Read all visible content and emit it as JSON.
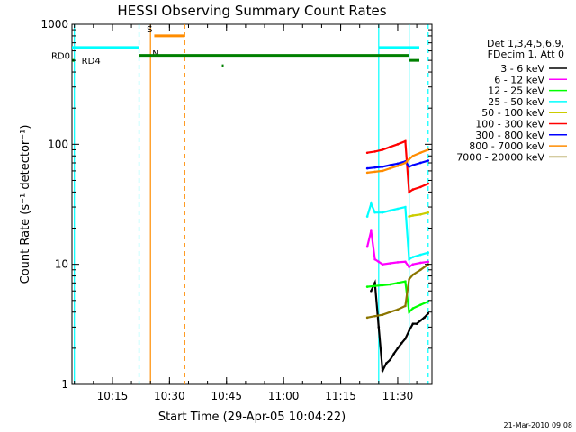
{
  "chart_data": {
    "type": "line",
    "title": "HESSI Observing Summary Count Rates",
    "xlabel": "Start Time (29-Apr-05 10:04:22)",
    "ylabel": "Count Rate (s⁻¹ detector⁻¹)",
    "y_scale": "log",
    "ylim": [
      1,
      1000
    ],
    "xlim": [
      "10:04:22",
      "11:39:00"
    ],
    "x_ticks": [
      "10:15",
      "10:30",
      "10:45",
      "11:00",
      "11:15",
      "11:30"
    ],
    "y_ticks": [
      "1",
      "10",
      "100",
      "1000"
    ],
    "legend": {
      "placement": "right",
      "header": [
        "Det 1,3,4,5,6,9,",
        "FDecim 1, Att 0"
      ],
      "entries": [
        {
          "label": "3 - 6 keV",
          "color": "#000000"
        },
        {
          "label": "6 - 12 keV",
          "color": "#ff00ff"
        },
        {
          "label": "12 - 25 keV",
          "color": "#00ff00"
        },
        {
          "label": "25 - 50 keV",
          "color": "#00ffff"
        },
        {
          "label": "50 - 100 keV",
          "color": "#cccc00"
        },
        {
          "label": "100 - 300 keV",
          "color": "#ff0000"
        },
        {
          "label": "300 - 800 keV",
          "color": "#0000ff"
        },
        {
          "label": "800 - 7000 keV",
          "color": "#ff8c00"
        },
        {
          "label": "7000 - 20000 keV",
          "color": "#8b7500"
        }
      ]
    },
    "series": [
      {
        "name": "3 - 6 keV",
        "color": "#000000",
        "x": [
          "11:23",
          "11:24",
          "11:25",
          "11:26",
          "11:27",
          "11:28",
          "11:29",
          "11:30",
          "11:31",
          "11:32",
          "11:33",
          "11:34",
          "11:35",
          "11:36",
          "11:37",
          "11:38"
        ],
        "y": [
          6,
          7,
          3,
          1.3,
          1.5,
          1.6,
          1.8,
          2.0,
          2.2,
          2.4,
          2.8,
          3.2,
          3.2,
          3.4,
          3.6,
          3.9
        ]
      },
      {
        "name": "6 - 12 keV",
        "color": "#ff00ff",
        "x": [
          "11:22",
          "11:23",
          "11:24",
          "11:25",
          "11:26",
          "11:28",
          "11:30",
          "11:32",
          "11:33",
          "11:34",
          "11:36",
          "11:38"
        ],
        "y": [
          14,
          19,
          11,
          10.5,
          10,
          10.2,
          10.4,
          10.5,
          9.5,
          10,
          10.3,
          10.5
        ]
      },
      {
        "name": "12 - 25 keV",
        "color": "#00ff00",
        "x": [
          "11:22",
          "11:24",
          "11:26",
          "11:28",
          "11:30",
          "11:32",
          "11:33",
          "11:34",
          "11:36",
          "11:38"
        ],
        "y": [
          6.5,
          6.6,
          6.7,
          6.8,
          7.0,
          7.2,
          4.0,
          4.3,
          4.6,
          4.9
        ]
      },
      {
        "name": "25 - 50 keV",
        "color": "#00ffff",
        "x": [
          "11:22",
          "11:23",
          "11:24",
          "11:26",
          "11:28",
          "11:30",
          "11:32",
          "11:33",
          "11:34",
          "11:36",
          "11:38"
        ],
        "y": [
          25,
          32,
          27,
          27,
          28,
          29,
          30,
          11,
          11.5,
          12,
          12.5
        ]
      },
      {
        "name": "50 - 100 keV",
        "color": "#cccc00",
        "x": [
          "11:33",
          "11:34",
          "11:36",
          "11:38"
        ],
        "y": [
          25,
          25.5,
          26,
          27
        ]
      },
      {
        "name": "100 - 300 keV",
        "color": "#ff0000",
        "x": [
          "11:22",
          "11:24",
          "11:26",
          "11:28",
          "11:30",
          "11:32",
          "11:33",
          "11:34",
          "11:36",
          "11:38"
        ],
        "y": [
          85,
          87,
          90,
          95,
          100,
          106,
          40,
          42,
          44,
          47
        ]
      },
      {
        "name": "300 - 800 keV",
        "color": "#0000ff",
        "x": [
          "11:22",
          "11:24",
          "11:26",
          "11:28",
          "11:30",
          "11:32",
          "11:33",
          "11:34",
          "11:36",
          "11:38"
        ],
        "y": [
          63,
          64,
          65,
          67,
          69,
          72,
          65,
          67,
          70,
          73
        ]
      },
      {
        "name": "800 - 7000 keV",
        "color": "#ff8c00",
        "x": [
          "11:22",
          "11:24",
          "11:26",
          "11:28",
          "11:30",
          "11:32",
          "11:33",
          "11:34",
          "11:36",
          "11:38"
        ],
        "y": [
          58,
          59,
          60,
          63,
          66,
          70,
          75,
          80,
          85,
          90
        ]
      },
      {
        "name": "7000 - 20000 keV",
        "color": "#8b7500",
        "x": [
          "11:22",
          "11:24",
          "11:26",
          "11:28",
          "11:30",
          "11:32",
          "11:33",
          "11:34",
          "11:36",
          "11:38"
        ],
        "y": [
          3.6,
          3.7,
          3.8,
          4.0,
          4.2,
          4.5,
          7.5,
          8.2,
          9.0,
          10.0
        ]
      }
    ],
    "flag_bars": [
      {
        "label": "S",
        "color": "#ff8c00",
        "x": [
          "10:26",
          "10:34"
        ],
        "y": 800
      },
      {
        "label": "N",
        "color": "#00ffff",
        "x": [
          "10:04:22",
          "10:22"
        ],
        "y": 640
      },
      {
        "label": "",
        "color": "#00ffff",
        "x": [
          "11:25",
          "11:39"
        ],
        "y": 640
      },
      {
        "label": "RD0",
        "color": "#008000",
        "x": [
          "10:22",
          "11:33"
        ],
        "y": 550
      },
      {
        "label": "RD4",
        "color": "#008000",
        "x": [
          "10:04:22",
          "10:05"
        ],
        "y": 500
      },
      {
        "label": "",
        "color": "#008000",
        "x": [
          "11:33",
          "11:39"
        ],
        "y": 500
      }
    ],
    "vlines": [
      {
        "x": "10:05",
        "color": "#00ffff",
        "style": "solid"
      },
      {
        "x": "10:22",
        "color": "#00ffff",
        "style": "dashed"
      },
      {
        "x": "10:25",
        "color": "#ff8c00",
        "style": "solid"
      },
      {
        "x": "10:34",
        "color": "#ff8c00",
        "style": "dashed"
      },
      {
        "x": "11:25",
        "color": "#00ffff",
        "style": "solid"
      },
      {
        "x": "11:33",
        "color": "#00ffff",
        "style": "solid"
      },
      {
        "x": "11:38",
        "color": "#00ffff",
        "style": "dashed"
      }
    ],
    "footer_stamp": "21-Mar-2010 09:08"
  }
}
